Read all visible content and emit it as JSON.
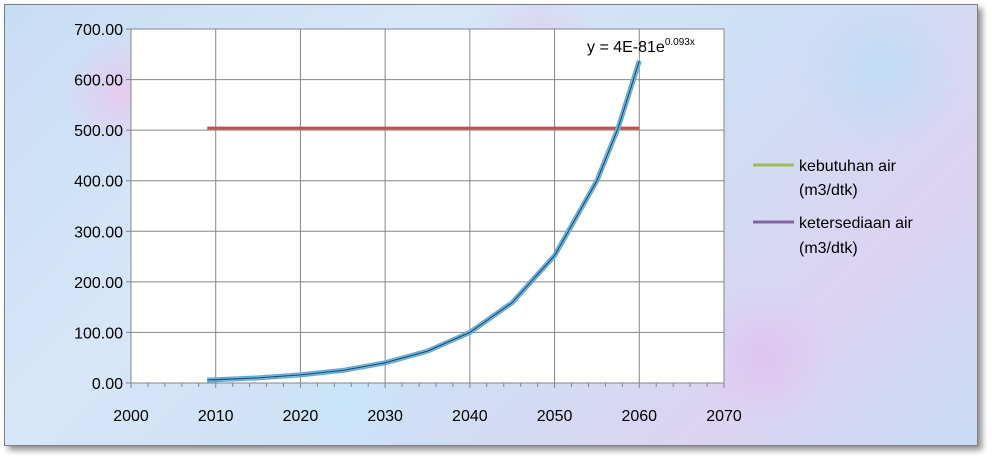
{
  "chart_data": {
    "type": "scatter",
    "x": [
      2009,
      2010,
      2015,
      2020,
      2025,
      2030,
      2035,
      2040,
      2045,
      2050,
      2055,
      2057.5,
      2060
    ],
    "series": [
      {
        "name": "kebutuhan air (m3/dtk)",
        "color": "#9bbb59",
        "values": [
          6,
          6.5,
          10,
          16,
          25,
          40,
          63,
          100,
          159,
          252,
          400,
          504,
          637
        ]
      },
      {
        "name": "ketersediaan air (m3/dtk)",
        "color": "#8064a2",
        "values": [
          6,
          6.5,
          10,
          16,
          25,
          40,
          63,
          100,
          159,
          252,
          400,
          504,
          637
        ]
      }
    ],
    "trendline": {
      "color": "#1f4e79",
      "equation_main": "y = 4E-81e",
      "equation_exponent": "0.093x"
    },
    "reference_line": {
      "color": "#c0504d",
      "value": 504,
      "x_start": 2009,
      "x_end": 2060
    },
    "xlim": [
      2000,
      2070
    ],
    "ylim": [
      0,
      700
    ],
    "x_ticks": [
      "2000",
      "2010",
      "2020",
      "2030",
      "2040",
      "2050",
      "2060",
      "2070"
    ],
    "y_ticks": [
      "0.00",
      "100.00",
      "200.00",
      "300.00",
      "400.00",
      "500.00",
      "600.00",
      "700.00"
    ],
    "grid": true,
    "legend_position": "right",
    "legend": {
      "items": [
        {
          "line1": "kebutuhan air",
          "line2": "(m3/dtk)",
          "color": "#9bbb59"
        },
        {
          "line1": "ketersediaan air",
          "line2": "(m3/dtk)",
          "color": "#8064a2"
        }
      ]
    }
  }
}
